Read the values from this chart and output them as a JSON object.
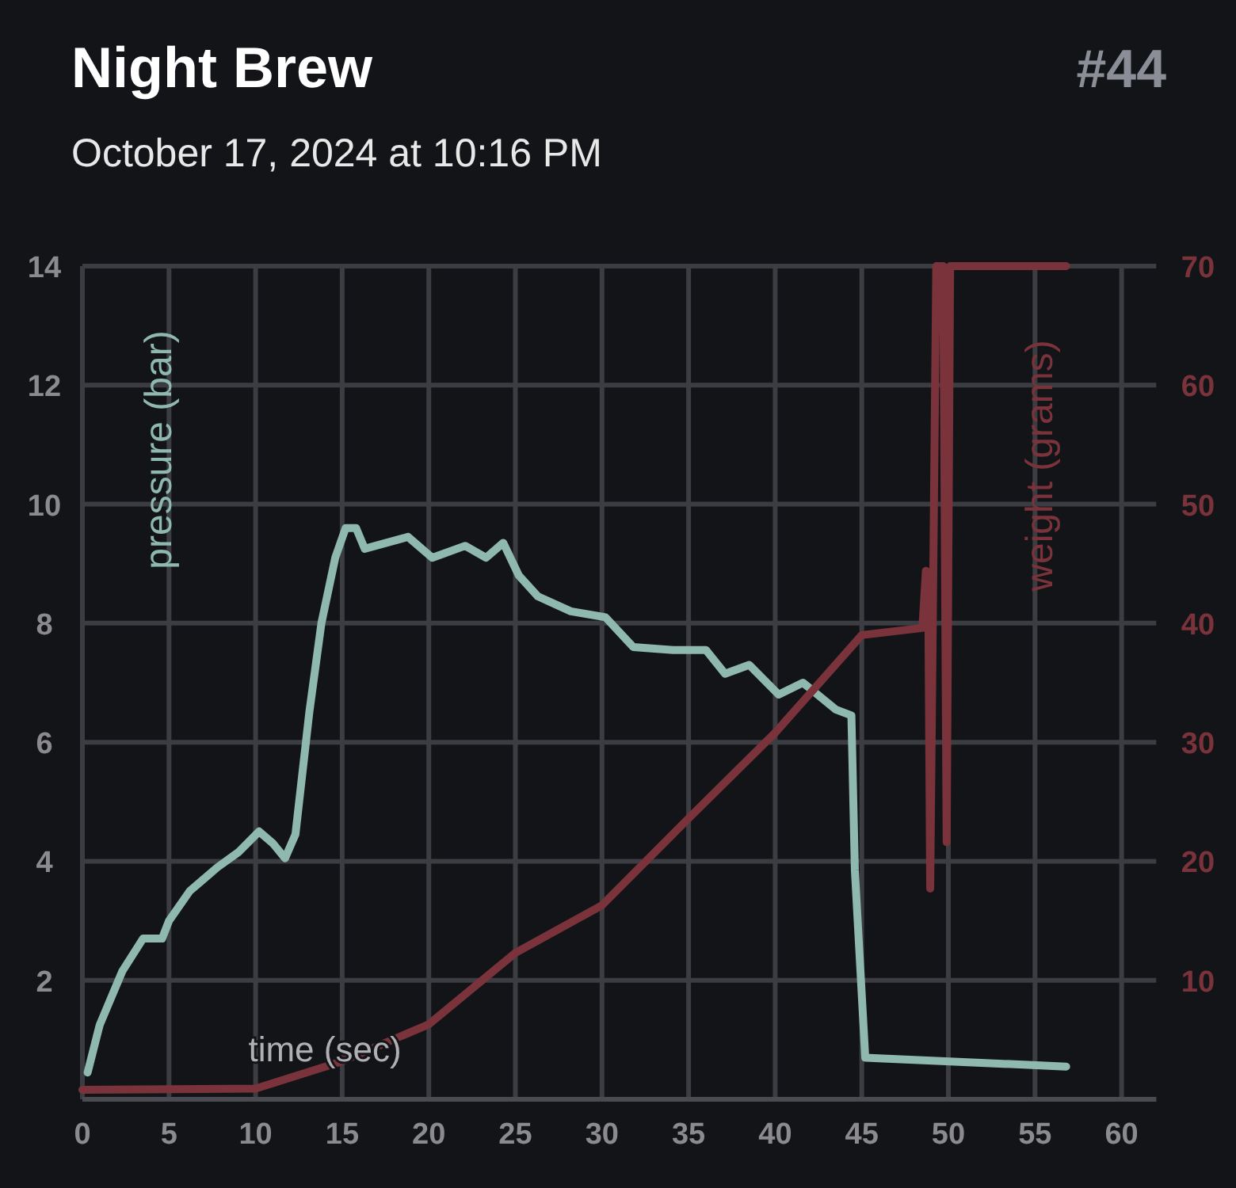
{
  "chart_data": {
    "type": "line",
    "title": "Night Brew",
    "subtitle": "October 17, 2024 at 10:16 PM",
    "annotations": [
      "#44"
    ],
    "xlabel": "time (sec)",
    "ylabel": "pressure (bar)",
    "y2label": "weight (grams)",
    "xlim": [
      0,
      62
    ],
    "xticks": [
      0,
      5,
      10,
      15,
      20,
      25,
      30,
      35,
      40,
      45,
      50,
      55,
      60
    ],
    "ylim": [
      0,
      14
    ],
    "yticks": [
      {
        "value": 0,
        "label": null
      },
      2,
      4,
      6,
      8,
      10,
      12,
      14
    ],
    "y2lim": [
      0,
      70
    ],
    "y2ticks": [
      10,
      20,
      30,
      40,
      50,
      60,
      70
    ],
    "grid": true,
    "legend": false,
    "marker": "none",
    "line_style": "solid",
    "series": [
      {
        "color": "#8fb8ae",
        "x": [
          0.3,
          1.0,
          2.3,
          3.5,
          4.6,
          5.0,
          6.2,
          7.8,
          9.0,
          10.2,
          11.0,
          11.7,
          12.3,
          13.1,
          13.8,
          14.6,
          15.2,
          15.8,
          16.3,
          18.8,
          20.2,
          22.1,
          23.3,
          24.3,
          25.2,
          26.3,
          28.2,
          30.2,
          31.8,
          34.1,
          36.0,
          37.1,
          38.5,
          40.2,
          41.6,
          43.5,
          44.4,
          44.6,
          45.2,
          56.8
        ],
        "values": [
          0.45,
          1.25,
          2.15,
          2.7,
          2.7,
          3.0,
          3.5,
          3.9,
          4.15,
          4.5,
          4.3,
          4.05,
          4.45,
          6.5,
          8.0,
          9.1,
          9.6,
          9.6,
          9.25,
          9.45,
          9.1,
          9.3,
          9.1,
          9.35,
          8.8,
          8.45,
          8.2,
          8.1,
          7.6,
          7.55,
          7.55,
          7.15,
          7.3,
          6.8,
          7.0,
          6.55,
          6.45,
          3.85,
          0.7,
          0.55
        ]
      },
      {
        "color": "#7a333b",
        "axis": "y2",
        "x": [
          0,
          10,
          15,
          20,
          25,
          30,
          35,
          40,
          45,
          48.5,
          48.7,
          48.85,
          48.95,
          49.3,
          49.7,
          49.9,
          50.1,
          56.8
        ],
        "values": [
          0.8,
          0.9,
          3.2,
          6.3,
          12.3,
          16.3,
          23.6,
          30.8,
          39,
          39.6,
          44.4,
          39.6,
          17.7,
          70,
          70,
          21.6,
          70,
          70
        ]
      }
    ]
  }
}
